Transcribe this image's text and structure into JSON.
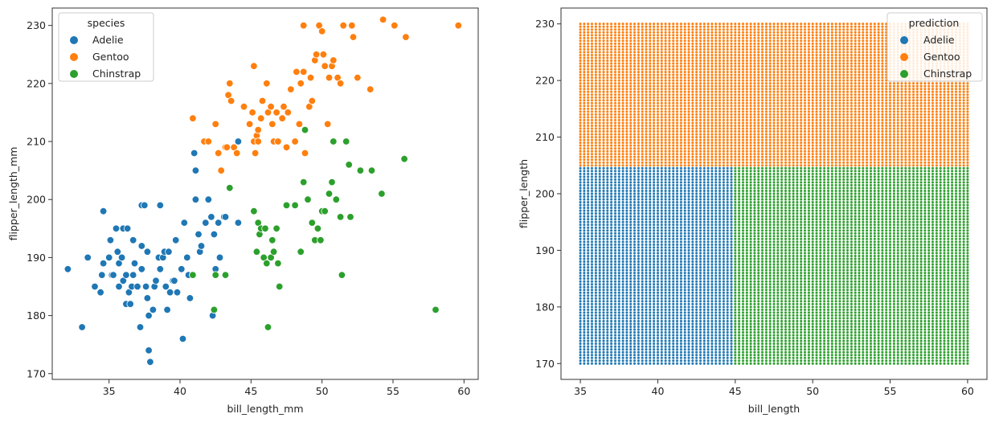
{
  "chart_data": [
    {
      "type": "scatter",
      "xlabel": "bill_length_mm",
      "ylabel": "flipper_length_mm",
      "xlim": [
        31,
        61
      ],
      "ylim": [
        169,
        233
      ],
      "xticks": [
        35,
        40,
        45,
        50,
        55,
        60
      ],
      "yticks": [
        170,
        180,
        190,
        200,
        210,
        220,
        230
      ],
      "grid": false,
      "legend": {
        "title": "species",
        "placement": "top-left"
      },
      "series": [
        {
          "name": "Adelie",
          "color": "#1f77b4",
          "points": [
            [
              32.1,
              188
            ],
            [
              33.1,
              178
            ],
            [
              33.5,
              190
            ],
            [
              34.0,
              185
            ],
            [
              34.4,
              184
            ],
            [
              34.5,
              187
            ],
            [
              34.6,
              198
            ],
            [
              34.6,
              189
            ],
            [
              35.0,
              190
            ],
            [
              35.1,
              193
            ],
            [
              35.2,
              187
            ],
            [
              35.3,
              187
            ],
            [
              35.5,
              195
            ],
            [
              35.6,
              191
            ],
            [
              35.7,
              189
            ],
            [
              35.7,
              185
            ],
            [
              35.9,
              190
            ],
            [
              36.0,
              186
            ],
            [
              36.0,
              195
            ],
            [
              36.2,
              187
            ],
            [
              36.2,
              182
            ],
            [
              36.3,
              195
            ],
            [
              36.4,
              184
            ],
            [
              36.5,
              182
            ],
            [
              36.6,
              185
            ],
            [
              36.7,
              187
            ],
            [
              36.7,
              193
            ],
            [
              36.8,
              189
            ],
            [
              37.0,
              185
            ],
            [
              37.2,
              178
            ],
            [
              37.3,
              199
            ],
            [
              37.3,
              188
            ],
            [
              37.3,
              192
            ],
            [
              37.5,
              199
            ],
            [
              37.6,
              185
            ],
            [
              37.7,
              183
            ],
            [
              37.7,
              191
            ],
            [
              37.8,
              174
            ],
            [
              37.8,
              180
            ],
            [
              37.9,
              172
            ],
            [
              38.1,
              181
            ],
            [
              38.2,
              185
            ],
            [
              38.3,
              186
            ],
            [
              38.5,
              190
            ],
            [
              38.6,
              188
            ],
            [
              38.6,
              199
            ],
            [
              38.8,
              190
            ],
            [
              38.9,
              191
            ],
            [
              39.0,
              185
            ],
            [
              39.1,
              181
            ],
            [
              39.2,
              191
            ],
            [
              39.3,
              184
            ],
            [
              39.5,
              186
            ],
            [
              39.6,
              186
            ],
            [
              39.7,
              193
            ],
            [
              39.8,
              184
            ],
            [
              40.1,
              188
            ],
            [
              40.2,
              176
            ],
            [
              40.3,
              196
            ],
            [
              40.5,
              190
            ],
            [
              40.6,
              187
            ],
            [
              40.7,
              183
            ],
            [
              40.9,
              187
            ],
            [
              41.0,
              208
            ],
            [
              41.1,
              205
            ],
            [
              41.1,
              200
            ],
            [
              41.3,
              194
            ],
            [
              41.4,
              191
            ],
            [
              41.5,
              192
            ],
            [
              41.8,
              196
            ],
            [
              42.0,
              200
            ],
            [
              42.2,
              197
            ],
            [
              42.3,
              180
            ],
            [
              42.4,
              194
            ],
            [
              42.5,
              188
            ],
            [
              42.7,
              196
            ],
            [
              42.8,
              190
            ],
            [
              43.1,
              197
            ],
            [
              43.2,
              197
            ],
            [
              44.1,
              196
            ],
            [
              44.1,
              210
            ]
          ]
        },
        {
          "name": "Gentoo",
          "color": "#ff7f0e",
          "points": [
            [
              40.9,
              214
            ],
            [
              41.7,
              210
            ],
            [
              42.0,
              210
            ],
            [
              42.5,
              213
            ],
            [
              42.7,
              208
            ],
            [
              42.9,
              205
            ],
            [
              43.2,
              209
            ],
            [
              43.3,
              209
            ],
            [
              43.4,
              218
            ],
            [
              43.5,
              220
            ],
            [
              43.6,
              217
            ],
            [
              43.8,
              209
            ],
            [
              44.0,
              208
            ],
            [
              44.5,
              216
            ],
            [
              44.9,
              213
            ],
            [
              45.1,
              215
            ],
            [
              45.2,
              210
            ],
            [
              45.2,
              223
            ],
            [
              45.3,
              208
            ],
            [
              45.4,
              211
            ],
            [
              45.5,
              212
            ],
            [
              45.5,
              210
            ],
            [
              45.7,
              214
            ],
            [
              45.8,
              217
            ],
            [
              46.1,
              220
            ],
            [
              46.2,
              215
            ],
            [
              46.4,
              216
            ],
            [
              46.5,
              213
            ],
            [
              46.6,
              210
            ],
            [
              46.8,
              215
            ],
            [
              46.9,
              210
            ],
            [
              47.2,
              214
            ],
            [
              47.3,
              216
            ],
            [
              47.5,
              209
            ],
            [
              47.6,
              215
            ],
            [
              47.8,
              219
            ],
            [
              48.1,
              210
            ],
            [
              48.2,
              222
            ],
            [
              48.4,
              213
            ],
            [
              48.5,
              220
            ],
            [
              48.7,
              230
            ],
            [
              48.7,
              222
            ],
            [
              48.8,
              208
            ],
            [
              49.1,
              216
            ],
            [
              49.2,
              221
            ],
            [
              49.3,
              217
            ],
            [
              49.5,
              224
            ],
            [
              49.6,
              225
            ],
            [
              49.8,
              230
            ],
            [
              50.0,
              229
            ],
            [
              50.1,
              225
            ],
            [
              50.2,
              223
            ],
            [
              50.4,
              213
            ],
            [
              50.5,
              221
            ],
            [
              50.7,
              223
            ],
            [
              50.8,
              224
            ],
            [
              51.1,
              221
            ],
            [
              51.3,
              220
            ],
            [
              51.5,
              230
            ],
            [
              52.1,
              230
            ],
            [
              52.2,
              228
            ],
            [
              52.5,
              221
            ],
            [
              53.4,
              219
            ],
            [
              54.3,
              231
            ],
            [
              55.1,
              230
            ],
            [
              55.9,
              228
            ],
            [
              59.6,
              230
            ]
          ]
        },
        {
          "name": "Chinstrap",
          "color": "#2ca02c",
          "points": [
            [
              40.9,
              187
            ],
            [
              42.4,
              181
            ],
            [
              42.5,
              187
            ],
            [
              43.2,
              187
            ],
            [
              43.5,
              202
            ],
            [
              45.2,
              198
            ],
            [
              45.4,
              191
            ],
            [
              45.5,
              196
            ],
            [
              45.6,
              194
            ],
            [
              45.7,
              195
            ],
            [
              45.9,
              190
            ],
            [
              46.0,
              195
            ],
            [
              46.1,
              189
            ],
            [
              46.2,
              178
            ],
            [
              46.4,
              190
            ],
            [
              46.5,
              193
            ],
            [
              46.6,
              191
            ],
            [
              46.8,
              195
            ],
            [
              46.9,
              189
            ],
            [
              47.0,
              185
            ],
            [
              47.5,
              199
            ],
            [
              48.1,
              199
            ],
            [
              48.5,
              191
            ],
            [
              48.7,
              203
            ],
            [
              48.8,
              212
            ],
            [
              49.0,
              200
            ],
            [
              49.3,
              196
            ],
            [
              49.5,
              193
            ],
            [
              49.7,
              195
            ],
            [
              49.9,
              193
            ],
            [
              50.0,
              198
            ],
            [
              50.2,
              198
            ],
            [
              50.5,
              201
            ],
            [
              50.7,
              203
            ],
            [
              50.8,
              210
            ],
            [
              51.0,
              200
            ],
            [
              51.3,
              197
            ],
            [
              51.4,
              187
            ],
            [
              51.7,
              210
            ],
            [
              51.9,
              206
            ],
            [
              52.0,
              197
            ],
            [
              52.7,
              205
            ],
            [
              53.5,
              205
            ],
            [
              54.2,
              201
            ],
            [
              55.8,
              207
            ],
            [
              58.0,
              181
            ]
          ]
        }
      ]
    },
    {
      "type": "scatter",
      "xlabel": "bill_length",
      "ylabel": "flipper_length",
      "xlim": [
        33.75,
        61.25
      ],
      "ylim": [
        167.2,
        232.8
      ],
      "xticks": [
        35,
        40,
        45,
        50,
        55,
        60
      ],
      "yticks": [
        170,
        180,
        190,
        200,
        210,
        220,
        230
      ],
      "grid": false,
      "legend": {
        "title": "prediction",
        "placement": "top-right"
      },
      "grid_points": {
        "x_range": [
          35,
          60
        ],
        "y_range": [
          170,
          230
        ],
        "x_step": 0.25,
        "y_step": 0.5
      },
      "regions": [
        {
          "name": "Adelie",
          "color": "#1f77b4",
          "x": [
            35,
            44.75
          ],
          "y": [
            170,
            204.5
          ]
        },
        {
          "name": "Gentoo",
          "color": "#ff7f0e",
          "x": [
            35,
            60
          ],
          "y": [
            205,
            230
          ]
        },
        {
          "name": "Chinstrap",
          "color": "#2ca02c",
          "x": [
            45,
            60
          ],
          "y": [
            170,
            204.5
          ]
        }
      ],
      "series": [
        {
          "name": "Adelie",
          "color": "#1f77b4"
        },
        {
          "name": "Gentoo",
          "color": "#ff7f0e"
        },
        {
          "name": "Chinstrap",
          "color": "#2ca02c"
        }
      ]
    }
  ]
}
